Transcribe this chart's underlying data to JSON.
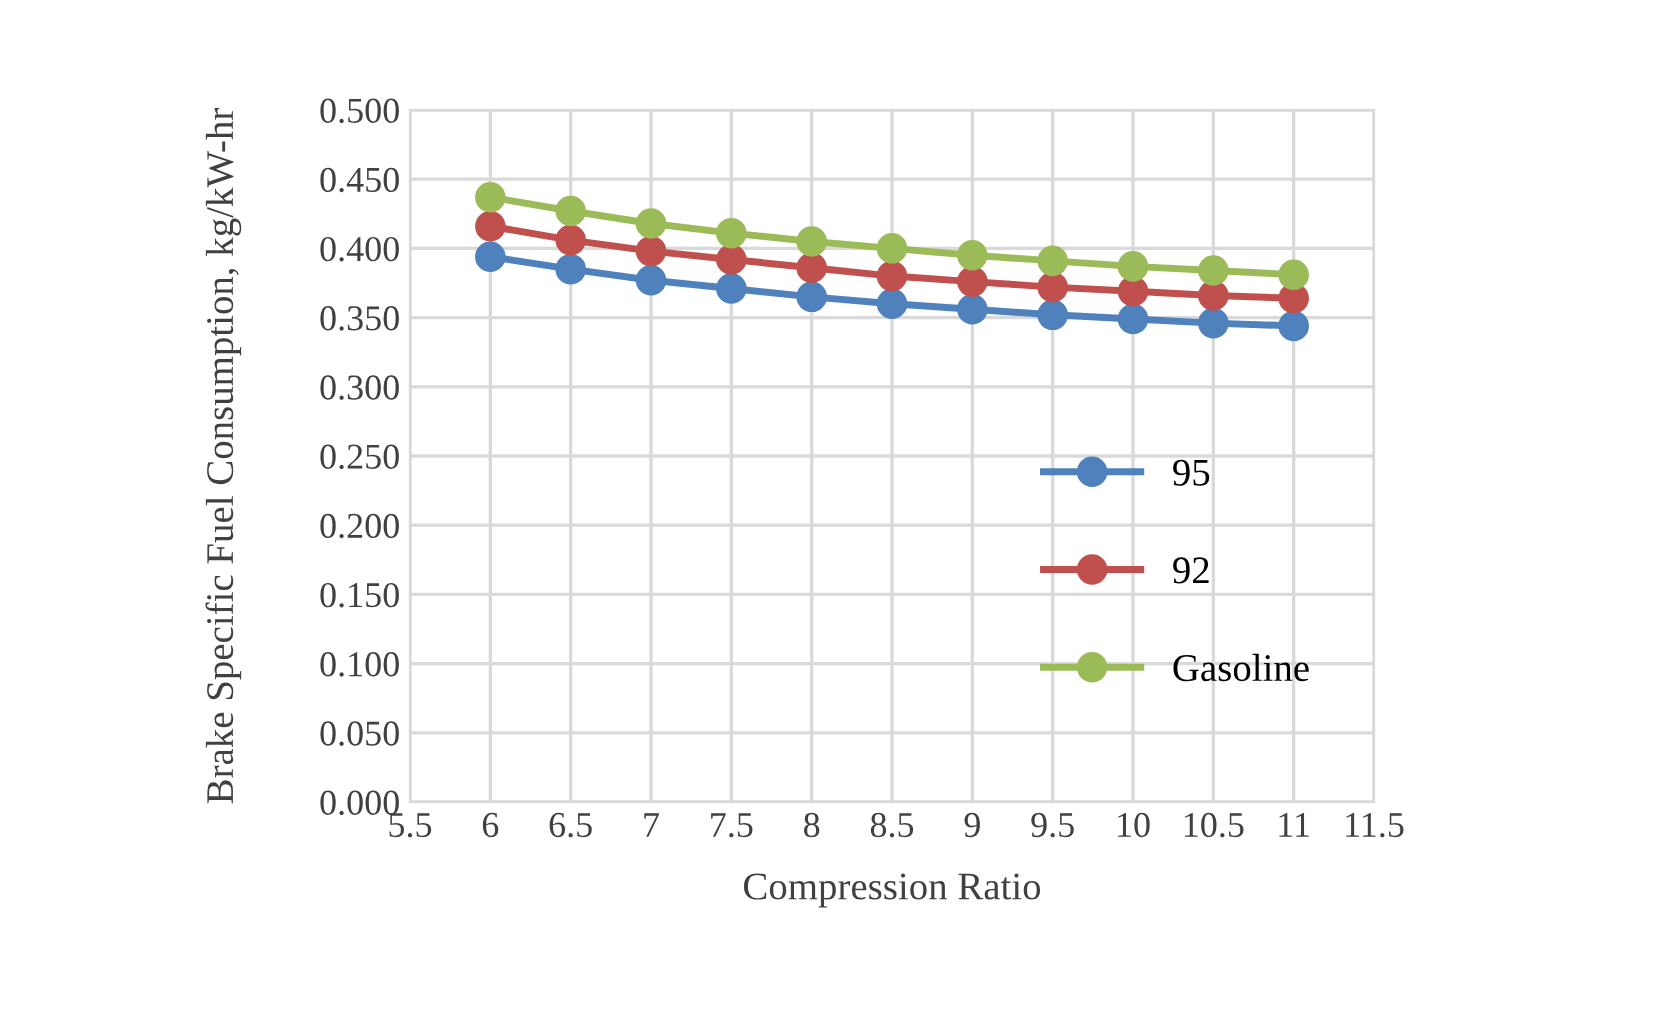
{
  "chart_data": {
    "type": "line",
    "xlabel": "Compression Ratio",
    "ylabel": "Brake Specific Fuel Consumption, kg/kW-hr",
    "x": [
      6,
      6.5,
      7,
      7.5,
      8,
      8.5,
      9,
      9.5,
      10,
      10.5,
      11
    ],
    "series": [
      {
        "name": "95",
        "color": "#4f81bd",
        "values": [
          0.394,
          0.385,
          0.377,
          0.371,
          0.365,
          0.36,
          0.356,
          0.352,
          0.349,
          0.346,
          0.344
        ]
      },
      {
        "name": "92",
        "color": "#c0504d",
        "values": [
          0.416,
          0.406,
          0.398,
          0.392,
          0.386,
          0.38,
          0.376,
          0.372,
          0.369,
          0.366,
          0.364
        ]
      },
      {
        "name": "Gasoline",
        "color": "#9bbb59",
        "values": [
          0.437,
          0.427,
          0.418,
          0.411,
          0.405,
          0.4,
          0.395,
          0.391,
          0.387,
          0.384,
          0.381
        ]
      }
    ],
    "xlim": [
      5.5,
      11.5
    ],
    "xticks": [
      5.5,
      6,
      6.5,
      7,
      7.5,
      8,
      8.5,
      9,
      9.5,
      10,
      10.5,
      11,
      11.5
    ],
    "ylim": [
      0,
      0.5
    ],
    "yticks": [
      {
        "value": 0,
        "label": "0.000"
      },
      {
        "value": 0.05,
        "label": "0.050"
      },
      {
        "value": 0.1,
        "label": "0.100"
      },
      {
        "value": 0.15,
        "label": "0.150"
      },
      {
        "value": 0.2,
        "label": "0.200"
      },
      {
        "value": 0.25,
        "label": "0.250"
      },
      {
        "value": 0.3,
        "label": "0.300"
      },
      {
        "value": 0.35,
        "label": "0.350"
      },
      {
        "value": 0.4,
        "label": "0.400"
      },
      {
        "value": 0.45,
        "label": "0.450"
      },
      {
        "value": 0.5,
        "label": "0.500"
      }
    ],
    "grid": true,
    "legend": "right",
    "marker": "circle",
    "line_style": "solid"
  }
}
